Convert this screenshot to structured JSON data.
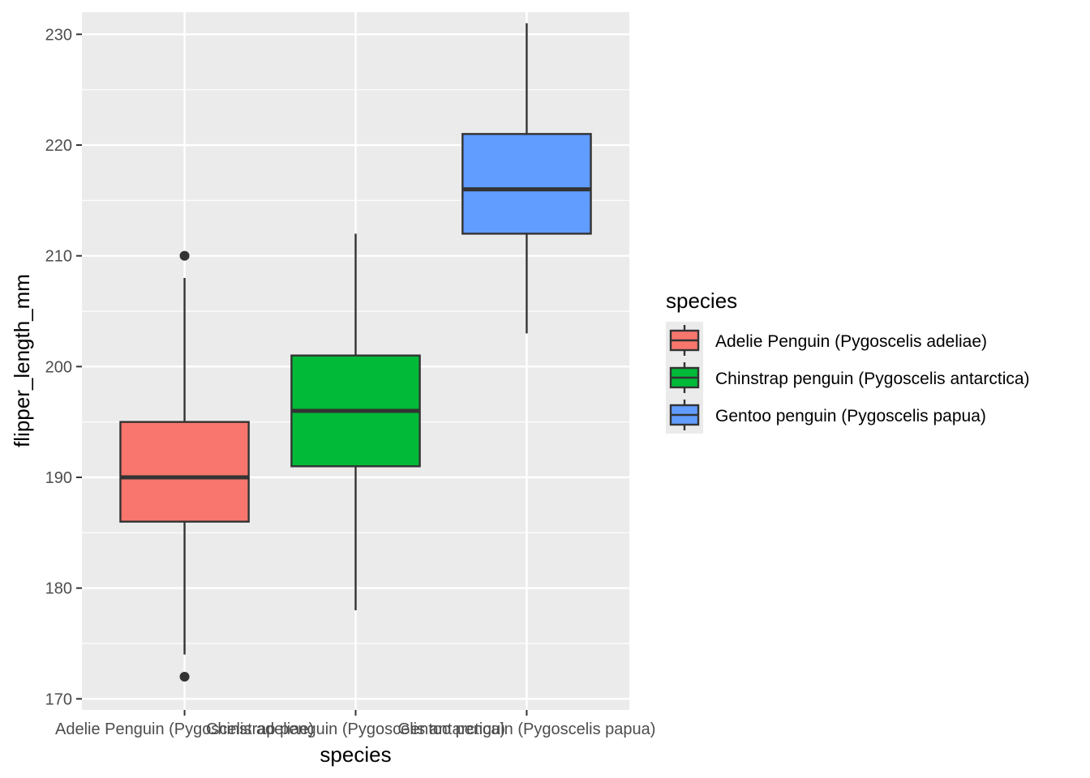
{
  "chart_data": {
    "type": "boxplot",
    "xlabel": "species",
    "ylabel": "flipper_length_mm",
    "ylim": [
      169,
      232
    ],
    "yticks": [
      170,
      180,
      190,
      200,
      210,
      220,
      230
    ],
    "grid": true,
    "legend": {
      "title": "species",
      "position": "right"
    },
    "series": [
      {
        "name": "Adelie Penguin (Pygoscelis adeliae)",
        "color": "#F8766D",
        "whisker_low": 174,
        "q1": 186,
        "median": 190,
        "q3": 195,
        "whisker_high": 208,
        "outliers": [
          172,
          210
        ]
      },
      {
        "name": "Chinstrap penguin (Pygoscelis antarctica)",
        "color": "#00BA38",
        "whisker_low": 178,
        "q1": 191,
        "median": 196,
        "q3": 201,
        "whisker_high": 212,
        "outliers": []
      },
      {
        "name": "Gentoo penguin (Pygoscelis papua)",
        "color": "#619CFF",
        "whisker_low": 203,
        "q1": 212,
        "median": 216,
        "q3": 221,
        "whisker_high": 231,
        "outliers": []
      }
    ]
  }
}
